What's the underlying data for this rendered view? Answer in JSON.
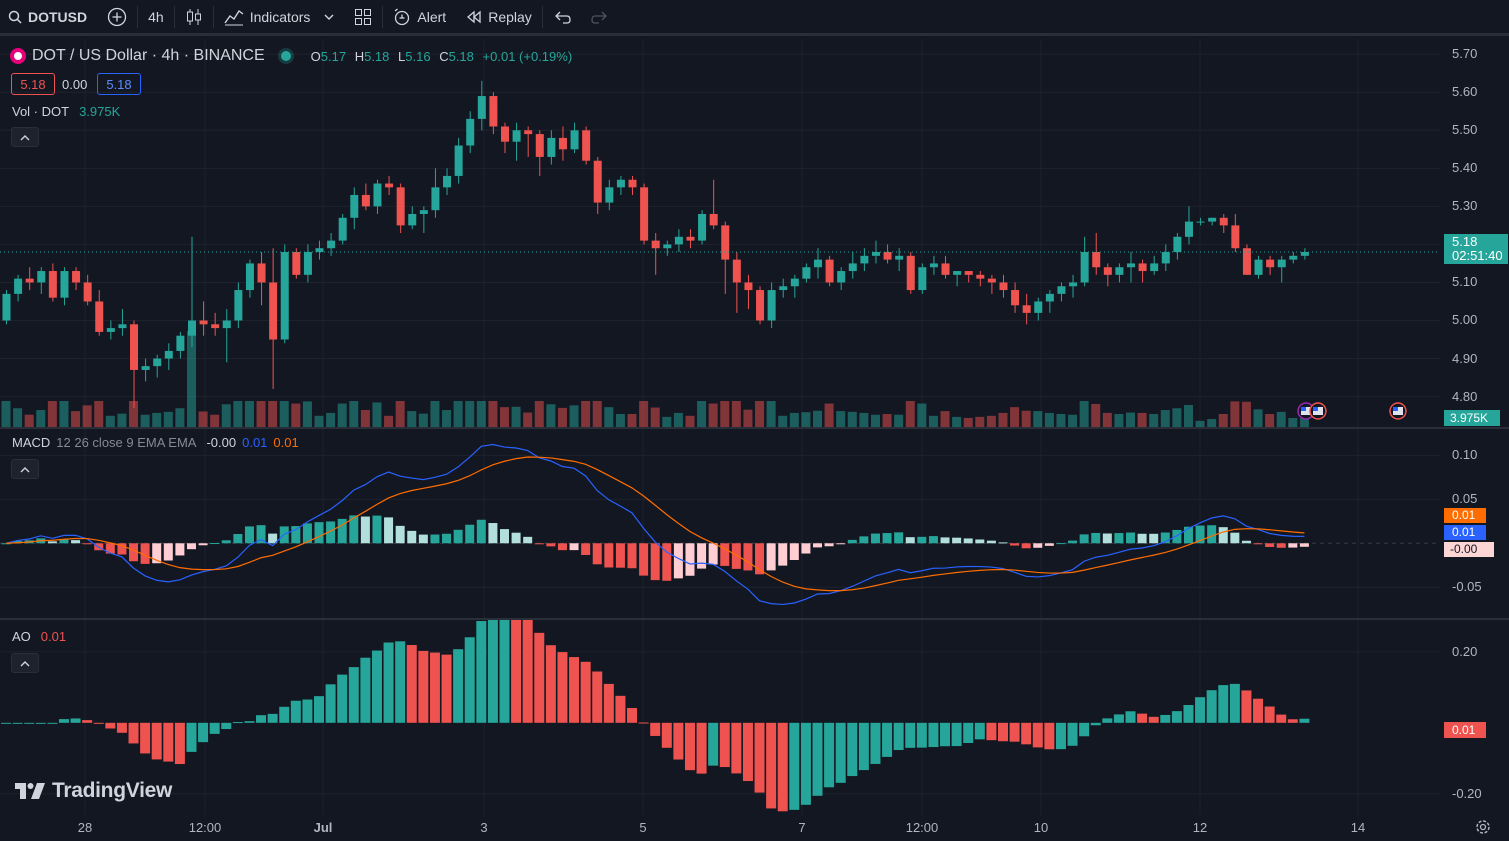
{
  "toolbar": {
    "symbol": "DOTUSD",
    "interval": "4h",
    "indicators_label": "Indicators",
    "alert_label": "Alert",
    "replay_label": "Replay"
  },
  "main": {
    "title": "DOT / US Dollar · 4h · BINANCE",
    "ohlc": {
      "o_label": "O",
      "o": "5.17",
      "h_label": "H",
      "h": "5.18",
      "l_label": "L",
      "l": "5.16",
      "c_label": "C",
      "c": "5.18",
      "change": "+0.01 (+0.19%)"
    },
    "bid": "5.18",
    "spread": "0.00",
    "ask": "5.18",
    "volume_label": "Vol · DOT",
    "volume_value": "3.975K",
    "price_ticks": [
      "5.70",
      "5.60",
      "5.50",
      "5.40",
      "5.30",
      "5.20",
      "5.10",
      "5.00",
      "4.90",
      "4.80"
    ],
    "last_price": "5.18",
    "countdown": "02:51:40"
  },
  "macd": {
    "label": "MACD",
    "params": "12 26 close 9 EMA EMA",
    "hist_value": "-0.00",
    "macd_value": "0.01",
    "signal_value": "0.01",
    "ticks": [
      "0.10",
      "0.05",
      "-0.05"
    ],
    "badge_signal": "0.01",
    "badge_macd": "0.01",
    "badge_hist": "-0.00"
  },
  "ao": {
    "label": "AO",
    "value": "0.01",
    "ticks": [
      "0.20",
      "-0.20"
    ],
    "badge": "0.01"
  },
  "xaxis": [
    "28",
    "12:00",
    "Jul",
    "3",
    "5",
    "7",
    "12:00",
    "10",
    "12",
    "14"
  ],
  "brand": "TradingView",
  "colors": {
    "up": "#26a69a",
    "down": "#ef5350",
    "macd": "#2962ff",
    "signal": "#ff6d00",
    "bg": "#131722"
  },
  "chart_data": {
    "type": "candlestick",
    "title": "DOT / US Dollar · 4h · BINANCE",
    "ylim": [
      4.72,
      5.74
    ],
    "candles": [
      [
        5.0,
        5.08,
        4.99,
        5.07
      ],
      [
        5.07,
        5.12,
        5.05,
        5.11
      ],
      [
        5.11,
        5.14,
        5.08,
        5.1
      ],
      [
        5.1,
        5.14,
        5.07,
        5.13
      ],
      [
        5.13,
        5.15,
        5.05,
        5.06
      ],
      [
        5.06,
        5.14,
        5.04,
        5.13
      ],
      [
        5.13,
        5.14,
        5.08,
        5.1
      ],
      [
        5.1,
        5.12,
        5.04,
        5.05
      ],
      [
        5.05,
        5.08,
        4.96,
        4.97
      ],
      [
        4.97,
        5.0,
        4.95,
        4.98
      ],
      [
        4.98,
        5.03,
        4.96,
        4.99
      ],
      [
        4.99,
        5.0,
        4.77,
        4.87
      ],
      [
        4.87,
        4.9,
        4.84,
        4.88
      ],
      [
        4.88,
        4.91,
        4.85,
        4.9
      ],
      [
        4.9,
        4.94,
        4.87,
        4.92
      ],
      [
        4.92,
        4.97,
        4.9,
        4.96
      ],
      [
        4.96,
        5.22,
        4.93,
        5.0
      ],
      [
        5.0,
        5.05,
        4.96,
        4.99
      ],
      [
        4.99,
        5.02,
        4.96,
        4.98
      ],
      [
        4.98,
        5.03,
        4.89,
        5.0
      ],
      [
        5.0,
        5.1,
        4.98,
        5.08
      ],
      [
        5.08,
        5.16,
        5.06,
        5.15
      ],
      [
        5.15,
        5.18,
        5.04,
        5.1
      ],
      [
        5.1,
        5.19,
        4.82,
        4.95
      ],
      [
        4.95,
        5.2,
        4.94,
        5.18
      ],
      [
        5.18,
        5.19,
        5.11,
        5.12
      ],
      [
        5.12,
        5.2,
        5.1,
        5.18
      ],
      [
        5.18,
        5.21,
        5.16,
        5.19
      ],
      [
        5.19,
        5.23,
        5.17,
        5.21
      ],
      [
        5.21,
        5.28,
        5.2,
        5.27
      ],
      [
        5.27,
        5.35,
        5.24,
        5.33
      ],
      [
        5.33,
        5.36,
        5.29,
        5.3
      ],
      [
        5.3,
        5.37,
        5.28,
        5.36
      ],
      [
        5.36,
        5.38,
        5.33,
        5.35
      ],
      [
        5.35,
        5.36,
        5.23,
        5.25
      ],
      [
        5.25,
        5.3,
        5.24,
        5.28
      ],
      [
        5.28,
        5.3,
        5.23,
        5.29
      ],
      [
        5.29,
        5.4,
        5.27,
        5.35
      ],
      [
        5.35,
        5.4,
        5.33,
        5.38
      ],
      [
        5.38,
        5.48,
        5.36,
        5.46
      ],
      [
        5.46,
        5.55,
        5.44,
        5.53
      ],
      [
        5.53,
        5.63,
        5.5,
        5.59
      ],
      [
        5.59,
        5.6,
        5.49,
        5.51
      ],
      [
        5.51,
        5.52,
        5.44,
        5.47
      ],
      [
        5.47,
        5.52,
        5.42,
        5.5
      ],
      [
        5.5,
        5.51,
        5.43,
        5.49
      ],
      [
        5.49,
        5.5,
        5.38,
        5.43
      ],
      [
        5.43,
        5.5,
        5.41,
        5.48
      ],
      [
        5.48,
        5.51,
        5.42,
        5.45
      ],
      [
        5.45,
        5.52,
        5.44,
        5.5
      ],
      [
        5.5,
        5.51,
        5.41,
        5.42
      ],
      [
        5.42,
        5.43,
        5.28,
        5.31
      ],
      [
        5.31,
        5.37,
        5.29,
        5.35
      ],
      [
        5.35,
        5.38,
        5.33,
        5.37
      ],
      [
        5.37,
        5.38,
        5.33,
        5.35
      ],
      [
        5.35,
        5.36,
        5.2,
        5.21
      ],
      [
        5.21,
        5.23,
        5.12,
        5.19
      ],
      [
        5.19,
        5.21,
        5.17,
        5.2
      ],
      [
        5.2,
        5.24,
        5.18,
        5.22
      ],
      [
        5.22,
        5.24,
        5.19,
        5.21
      ],
      [
        5.21,
        5.29,
        5.2,
        5.28
      ],
      [
        5.28,
        5.37,
        5.24,
        5.25
      ],
      [
        5.25,
        5.26,
        5.07,
        5.16
      ],
      [
        5.16,
        5.18,
        5.02,
        5.1
      ],
      [
        5.1,
        5.12,
        5.03,
        5.08
      ],
      [
        5.08,
        5.09,
        4.99,
        5.0
      ],
      [
        5.0,
        5.1,
        4.98,
        5.08
      ],
      [
        5.08,
        5.11,
        5.06,
        5.09
      ],
      [
        5.09,
        5.12,
        5.06,
        5.11
      ],
      [
        5.11,
        5.15,
        5.1,
        5.14
      ],
      [
        5.14,
        5.19,
        5.11,
        5.16
      ],
      [
        5.16,
        5.17,
        5.09,
        5.1
      ],
      [
        5.1,
        5.14,
        5.08,
        5.13
      ],
      [
        5.13,
        5.18,
        5.11,
        5.15
      ],
      [
        5.15,
        5.19,
        5.13,
        5.17
      ],
      [
        5.17,
        5.21,
        5.15,
        5.18
      ],
      [
        5.18,
        5.2,
        5.15,
        5.16
      ],
      [
        5.16,
        5.19,
        5.13,
        5.17
      ],
      [
        5.17,
        5.18,
        5.07,
        5.08
      ],
      [
        5.08,
        5.15,
        5.07,
        5.14
      ],
      [
        5.14,
        5.17,
        5.12,
        5.15
      ],
      [
        5.15,
        5.17,
        5.11,
        5.12
      ],
      [
        5.12,
        5.13,
        5.09,
        5.13
      ],
      [
        5.13,
        5.13,
        5.1,
        5.12
      ],
      [
        5.12,
        5.13,
        5.09,
        5.11
      ],
      [
        5.11,
        5.12,
        5.07,
        5.1
      ],
      [
        5.1,
        5.12,
        5.06,
        5.08
      ],
      [
        5.08,
        5.1,
        5.02,
        5.04
      ],
      [
        5.04,
        5.07,
        4.99,
        5.02
      ],
      [
        5.02,
        5.06,
        5.0,
        5.05
      ],
      [
        5.05,
        5.08,
        5.02,
        5.07
      ],
      [
        5.07,
        5.1,
        5.05,
        5.09
      ],
      [
        5.09,
        5.12,
        5.06,
        5.1
      ],
      [
        5.1,
        5.22,
        5.09,
        5.18
      ],
      [
        5.18,
        5.23,
        5.12,
        5.14
      ],
      [
        5.14,
        5.15,
        5.09,
        5.12
      ],
      [
        5.12,
        5.15,
        5.1,
        5.14
      ],
      [
        5.14,
        5.18,
        5.1,
        5.15
      ],
      [
        5.15,
        5.16,
        5.1,
        5.13
      ],
      [
        5.13,
        5.17,
        5.12,
        5.15
      ],
      [
        5.15,
        5.2,
        5.13,
        5.18
      ],
      [
        5.18,
        5.23,
        5.16,
        5.22
      ],
      [
        5.22,
        5.3,
        5.2,
        5.26
      ],
      [
        5.26,
        5.27,
        5.25,
        5.26
      ],
      [
        5.26,
        5.27,
        5.25,
        5.27
      ],
      [
        5.27,
        5.28,
        5.23,
        5.25
      ],
      [
        5.25,
        5.28,
        5.18,
        5.19
      ],
      [
        5.19,
        5.2,
        5.12,
        5.12
      ],
      [
        5.12,
        5.17,
        5.11,
        5.16
      ],
      [
        5.16,
        5.17,
        5.12,
        5.14
      ],
      [
        5.14,
        5.17,
        5.1,
        5.16
      ],
      [
        5.16,
        5.18,
        5.15,
        5.17
      ],
      [
        5.17,
        5.19,
        5.16,
        5.18
      ]
    ],
    "volume_note": "relative volume bars, last value 3.975K"
  }
}
